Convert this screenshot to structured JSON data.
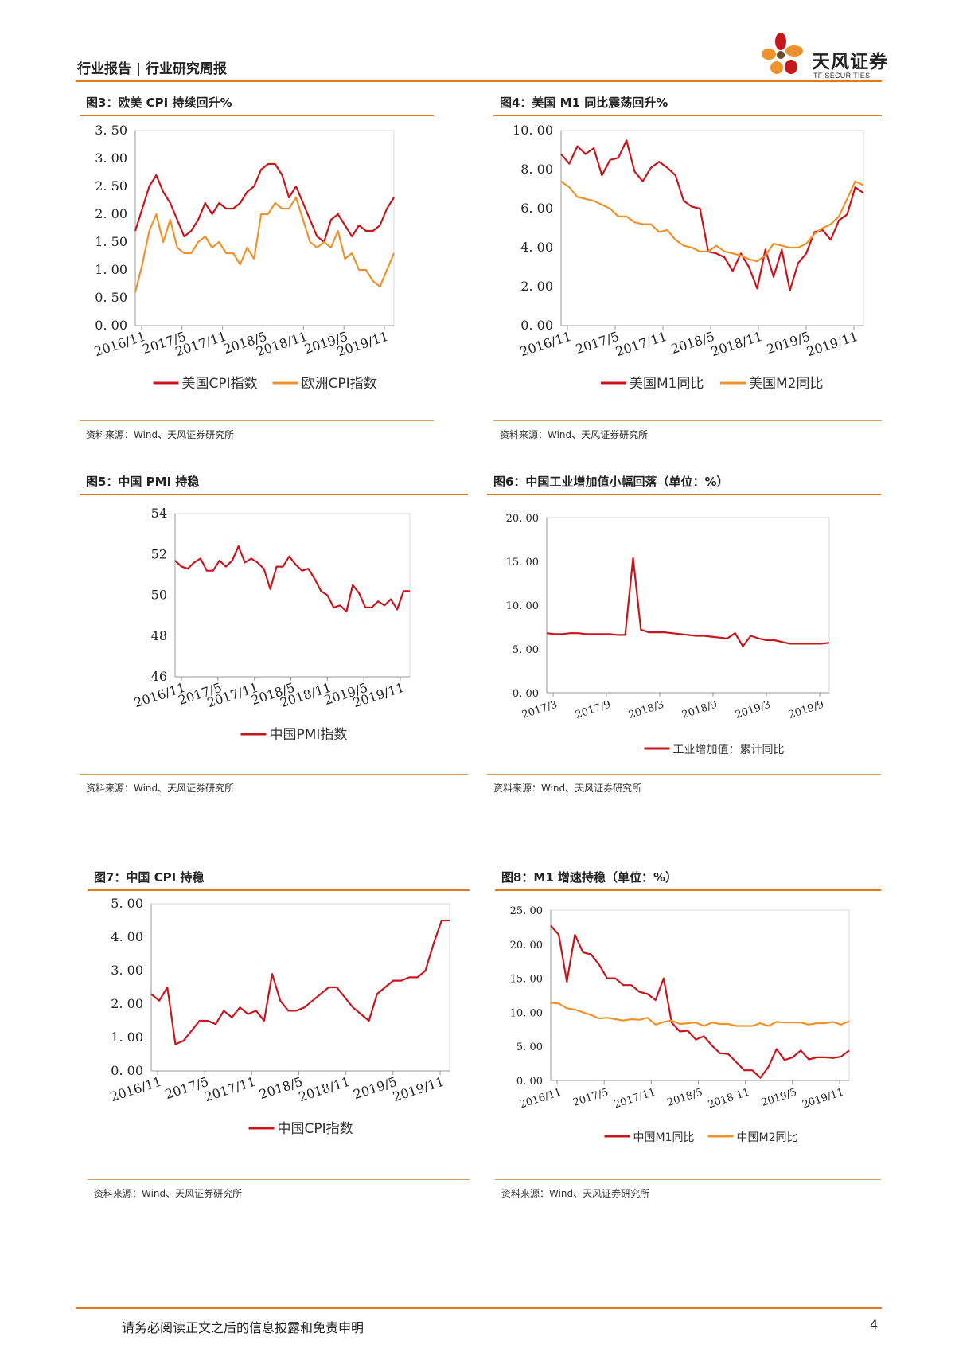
{
  "header": {
    "title": "行业报告 | 行业研究周报",
    "logo_main": "天风证券",
    "logo_sub": "TF SECURITIES"
  },
  "footer": {
    "disclaimer": "请务必阅读正文之后的信息披露和免责申明",
    "page": "4"
  },
  "colors": {
    "red": "#c8161d",
    "orange": "#f0922b",
    "accent": "#e07a1f"
  },
  "panels": [
    {
      "title": "图3：欧美 CPI 持续回升%",
      "source": "资料来源：Wind、天风证券研究所"
    },
    {
      "title": "图4：美国 M1 同比震荡回升%",
      "source": "资料来源：Wind、天风证券研究所"
    },
    {
      "title": "图5：中国 PMI 持稳",
      "source": "资料来源：Wind、天风证券研究所"
    },
    {
      "title": "图6：中国工业增加值小幅回落（单位：%）",
      "source": "资料来源：Wind、天风证券研究所"
    },
    {
      "title": "图7：中国 CPI 持稳",
      "source": "资料来源：Wind、天风证券研究所"
    },
    {
      "title": "图8：M1 增速持稳（单位：%）",
      "source": "资料来源：Wind、天风证券研究所"
    }
  ],
  "chart_data": [
    {
      "type": "line",
      "title": "图3：欧美 CPI 持续回升%",
      "ylim": [
        0,
        3.5
      ],
      "yticks": [
        "3. 50",
        "3. 00",
        "2. 50",
        "2. 00",
        "1. 50",
        "1. 00",
        "0. 50",
        "0. 00"
      ],
      "xticks": [
        "2016/11",
        "2017/5",
        "2017/11",
        "2018/5",
        "2018/11",
        "2019/5",
        "2019/11"
      ],
      "series": [
        {
          "name": "美国CPI指数",
          "color": "#c8161d",
          "values": [
            1.7,
            2.1,
            2.5,
            2.7,
            2.4,
            2.2,
            1.9,
            1.6,
            1.7,
            1.9,
            2.2,
            2.0,
            2.2,
            2.1,
            2.1,
            2.2,
            2.4,
            2.5,
            2.8,
            2.9,
            2.9,
            2.7,
            2.3,
            2.5,
            2.2,
            1.9,
            1.6,
            1.5,
            1.9,
            2.0,
            1.8,
            1.6,
            1.8,
            1.7,
            1.7,
            1.8,
            2.1,
            2.3
          ]
        },
        {
          "name": "欧洲CPI指数",
          "color": "#f0922b",
          "values": [
            0.6,
            1.1,
            1.7,
            2.0,
            1.5,
            1.9,
            1.4,
            1.3,
            1.3,
            1.5,
            1.6,
            1.4,
            1.5,
            1.3,
            1.3,
            1.1,
            1.4,
            1.2,
            2.0,
            2.0,
            2.2,
            2.1,
            2.1,
            2.3,
            1.9,
            1.5,
            1.4,
            1.5,
            1.4,
            1.7,
            1.2,
            1.3,
            1.0,
            1.0,
            0.8,
            0.7,
            1.0,
            1.3
          ]
        }
      ]
    },
    {
      "type": "line",
      "title": "图4：美国 M1 同比震荡回升%",
      "ylim": [
        0,
        10
      ],
      "yticks": [
        "10. 00",
        "8. 00",
        "6. 00",
        "4. 00",
        "2. 00",
        "0. 00"
      ],
      "xticks": [
        "2016/11",
        "2017/5",
        "2017/11",
        "2018/5",
        "2018/11",
        "2019/5",
        "2019/11"
      ],
      "series": [
        {
          "name": "美国M1同比",
          "color": "#c8161d",
          "values": [
            8.8,
            8.3,
            9.2,
            8.8,
            9.1,
            7.7,
            8.5,
            8.6,
            9.5,
            7.9,
            7.4,
            8.1,
            8.4,
            8.1,
            7.7,
            6.4,
            6.1,
            6.0,
            3.8,
            3.7,
            3.5,
            2.8,
            3.7,
            3.0,
            1.9,
            3.9,
            2.5,
            3.9,
            1.8,
            3.2,
            3.7,
            4.8,
            4.9,
            4.4,
            5.4,
            5.7,
            7.1,
            6.8
          ]
        },
        {
          "name": "美国M2同比",
          "color": "#f0922b",
          "values": [
            7.4,
            7.1,
            6.6,
            6.5,
            6.4,
            6.2,
            6.0,
            5.6,
            5.6,
            5.3,
            5.2,
            5.2,
            4.8,
            4.9,
            4.4,
            4.1,
            4.0,
            3.8,
            3.8,
            4.1,
            3.8,
            3.7,
            3.6,
            3.4,
            3.3,
            3.6,
            4.2,
            4.1,
            4.0,
            4.0,
            4.2,
            4.7,
            5.0,
            5.2,
            5.6,
            6.5,
            7.4,
            7.2
          ]
        }
      ]
    },
    {
      "type": "line",
      "title": "图5：中国 PMI 持稳",
      "ylim": [
        46,
        54
      ],
      "yticks": [
        "54",
        "52",
        "50",
        "48",
        "46"
      ],
      "xticks": [
        "2016/11",
        "2017/5",
        "2017/11",
        "2018/5",
        "2018/11",
        "2019/5",
        "2019/11"
      ],
      "series": [
        {
          "name": "中国PMI指数",
          "color": "#c8161d",
          "values": [
            51.7,
            51.4,
            51.3,
            51.6,
            51.8,
            51.2,
            51.2,
            51.7,
            51.4,
            51.7,
            52.4,
            51.6,
            51.8,
            51.6,
            51.3,
            50.3,
            51.4,
            51.4,
            51.9,
            51.5,
            51.2,
            51.3,
            50.8,
            50.2,
            50.0,
            49.4,
            49.5,
            49.2,
            50.5,
            50.1,
            49.4,
            49.4,
            49.7,
            49.5,
            49.8,
            49.3,
            50.2,
            50.2
          ]
        }
      ]
    },
    {
      "type": "line",
      "title": "图6：中国工业增加值小幅回落（单位：%）",
      "ylim": [
        0,
        20
      ],
      "yticks": [
        "20. 00",
        "15. 00",
        "10. 00",
        "5. 00",
        "0. 00"
      ],
      "xticks": [
        "2017/3",
        "2017/9",
        "2018/3",
        "2018/9",
        "2019/3",
        "2019/9"
      ],
      "series": [
        {
          "name": "工业增加值：累计同比",
          "color": "#c8161d",
          "values": [
            6.8,
            6.7,
            6.7,
            6.8,
            6.8,
            6.7,
            6.7,
            6.7,
            6.7,
            6.6,
            6.6,
            15.4,
            7.2,
            6.9,
            6.9,
            6.9,
            6.8,
            6.7,
            6.6,
            6.5,
            6.5,
            6.4,
            6.3,
            6.2,
            6.8,
            5.3,
            6.5,
            6.2,
            6.0,
            6.0,
            5.8,
            5.6,
            5.6,
            5.6,
            5.6,
            5.6,
            5.7
          ]
        }
      ]
    },
    {
      "type": "line",
      "title": "图7：中国 CPI 持稳",
      "ylim": [
        0,
        5
      ],
      "yticks": [
        "5. 00",
        "4. 00",
        "3. 00",
        "2. 00",
        "1. 00",
        "0. 00"
      ],
      "xticks": [
        "2016/11",
        "2017/5",
        "2017/11",
        "2018/5",
        "2018/11",
        "2019/5",
        "2019/11"
      ],
      "series": [
        {
          "name": "中国CPI指数",
          "color": "#c8161d",
          "values": [
            2.3,
            2.1,
            2.5,
            0.8,
            0.9,
            1.2,
            1.5,
            1.5,
            1.4,
            1.8,
            1.6,
            1.9,
            1.7,
            1.8,
            1.5,
            2.9,
            2.1,
            1.8,
            1.8,
            1.9,
            2.1,
            2.3,
            2.5,
            2.5,
            2.2,
            1.9,
            1.7,
            1.5,
            2.3,
            2.5,
            2.7,
            2.7,
            2.8,
            2.8,
            3.0,
            3.8,
            4.5,
            4.5
          ]
        }
      ]
    },
    {
      "type": "line",
      "title": "图8：M1 增速持稳（单位：%）",
      "ylim": [
        0,
        25
      ],
      "yticks": [
        "25. 00",
        "20. 00",
        "15. 00",
        "10. 00",
        "5. 00",
        "0. 00"
      ],
      "xticks": [
        "2016/11",
        "2017/5",
        "2017/11",
        "2018/5",
        "2018/11",
        "2019/5",
        "2019/11"
      ],
      "series": [
        {
          "name": "中国M1同比",
          "color": "#c8161d",
          "values": [
            22.7,
            21.4,
            14.5,
            21.4,
            18.8,
            18.5,
            17.0,
            15.0,
            15.0,
            14.0,
            14.0,
            13.0,
            12.7,
            11.8,
            15.0,
            8.5,
            7.2,
            7.3,
            6.0,
            6.5,
            5.1,
            4.0,
            3.9,
            2.7,
            1.5,
            1.5,
            0.4,
            2.0,
            4.6,
            3.0,
            3.4,
            4.4,
            3.1,
            3.4,
            3.4,
            3.3,
            3.5,
            4.4
          ]
        },
        {
          "name": "中国M2同比",
          "color": "#f0922b",
          "values": [
            11.4,
            11.3,
            10.6,
            10.4,
            10.0,
            9.6,
            9.1,
            9.2,
            9.0,
            8.8,
            9.0,
            8.9,
            9.2,
            8.2,
            8.6,
            8.8,
            8.3,
            8.4,
            8.5,
            8.0,
            8.5,
            8.3,
            8.3,
            8.0,
            8.0,
            8.0,
            8.4,
            8.0,
            8.6,
            8.5,
            8.5,
            8.5,
            8.2,
            8.4,
            8.4,
            8.6,
            8.2,
            8.7
          ]
        }
      ]
    }
  ]
}
